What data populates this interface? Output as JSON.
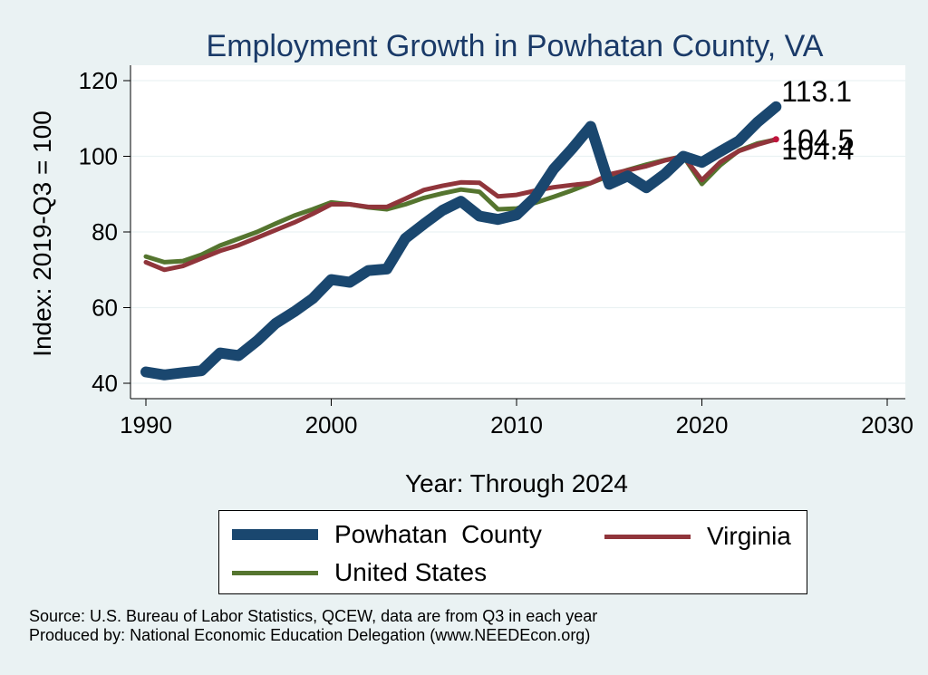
{
  "chart_data": {
    "type": "line",
    "title": "Employment Growth in Powhatan County, VA",
    "xlabel": "Year: Through 2024",
    "ylabel": "Index: 2019-Q3 = 100",
    "xlim": [
      1990,
      2030
    ],
    "ylim": [
      38,
      124
    ],
    "xticks": [
      1990,
      2000,
      2010,
      2020,
      2030
    ],
    "yticks": [
      40,
      60,
      80,
      100,
      120
    ],
    "grid": true,
    "legend_placement": "bottom",
    "x": [
      1990,
      1991,
      1992,
      1993,
      1994,
      1995,
      1996,
      1997,
      1998,
      1999,
      2000,
      2001,
      2002,
      2003,
      2004,
      2005,
      2006,
      2007,
      2008,
      2009,
      2010,
      2011,
      2012,
      2013,
      2014,
      2015,
      2016,
      2017,
      2018,
      2019,
      2020,
      2021,
      2022,
      2023,
      2024
    ],
    "series": [
      {
        "name": "Powhatan  County",
        "color": "#1a476f",
        "values": [
          43.0,
          42.2,
          42.8,
          43.3,
          48.0,
          47.3,
          51.2,
          55.8,
          58.9,
          62.4,
          67.4,
          66.7,
          69.8,
          70.2,
          78.3,
          82.1,
          85.7,
          88.1,
          84.2,
          83.3,
          84.5,
          89.2,
          96.6,
          102.0,
          107.9,
          92.6,
          94.8,
          91.7,
          95.3,
          100.0,
          98.4,
          101.3,
          104.1,
          109.0,
          113.1
        ],
        "end_label": "113.1"
      },
      {
        "name": "Virginia",
        "color": "#90353b",
        "values": [
          72.0,
          70.0,
          71.0,
          73.0,
          75.0,
          76.5,
          78.5,
          80.5,
          82.5,
          84.8,
          87.3,
          87.3,
          86.6,
          86.6,
          88.8,
          91.1,
          92.2,
          93.1,
          93.0,
          89.4,
          89.8,
          90.9,
          91.8,
          92.4,
          92.9,
          95.2,
          96.3,
          97.4,
          98.9,
          100.0,
          93.7,
          98.5,
          101.4,
          103.1,
          104.5
        ],
        "end_label": "104.5"
      },
      {
        "name": "United States",
        "color": "#55752f",
        "values": [
          73.5,
          72.0,
          72.3,
          74.0,
          76.4,
          78.2,
          80.0,
          82.2,
          84.3,
          86.0,
          87.8,
          87.3,
          86.5,
          86.0,
          87.3,
          89.0,
          90.2,
          91.2,
          90.6,
          86.0,
          86.2,
          87.7,
          89.3,
          91.0,
          92.9,
          94.8,
          96.4,
          97.8,
          99.0,
          100.0,
          92.7,
          97.7,
          101.5,
          103.4,
          104.4
        ],
        "end_label": "104.4"
      }
    ]
  },
  "legend": {
    "items": [
      {
        "label": "Powhatan  County",
        "color": "#1a476f"
      },
      {
        "label": "Virginia",
        "color": "#90353b"
      },
      {
        "label": "United States",
        "color": "#55752f"
      }
    ]
  },
  "source": {
    "line1": "Source: U.S. Bureau of Labor Statistics, QCEW, data are from Q3 in each year",
    "line2": "Produced by: National Economic Education Delegation (www.NEEDEcon.org)"
  }
}
